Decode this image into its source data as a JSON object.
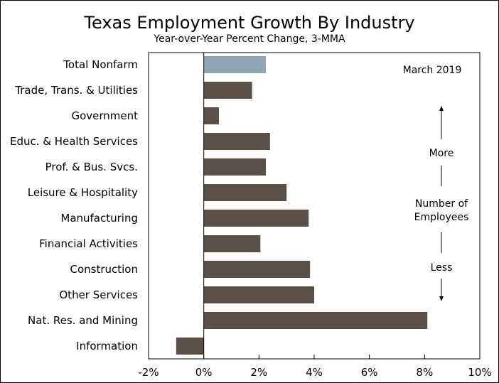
{
  "chart_data": {
    "type": "bar",
    "orientation": "horizontal",
    "title": "Texas Employment Growth By Industry",
    "subtitle": "Year-over-Year Percent Change, 3-MMA",
    "categories": [
      "Total Nonfarm",
      "Trade, Trans. & Utilities",
      "Government",
      "Educ. & Health Services",
      "Prof. & Bus. Svcs.",
      "Leisure & Hospitality",
      "Manufacturing",
      "Financial Activities",
      "Construction",
      "Other Services",
      "Nat. Res. and Mining",
      "Information"
    ],
    "values": [
      2.25,
      1.75,
      0.55,
      2.4,
      2.25,
      3.0,
      3.8,
      2.05,
      3.85,
      4.0,
      8.1,
      -1.0
    ],
    "highlight_index": 0,
    "colors": {
      "highlight": "#8fa6b6",
      "bar": "#5b5046",
      "frame": "#000000"
    },
    "xlim": [
      -2,
      10
    ],
    "xticks": [
      -2,
      0,
      2,
      4,
      6,
      8,
      10
    ],
    "xtick_labels": [
      "-2%",
      "0%",
      "2%",
      "4%",
      "6%",
      "8%",
      "10%"
    ],
    "xlabel": "",
    "ylabel": "",
    "grid": false,
    "annotations": {
      "date": "March 2019",
      "more": "More",
      "number_line1": "Number of",
      "number_line2": "Employees",
      "less": "Less"
    }
  }
}
